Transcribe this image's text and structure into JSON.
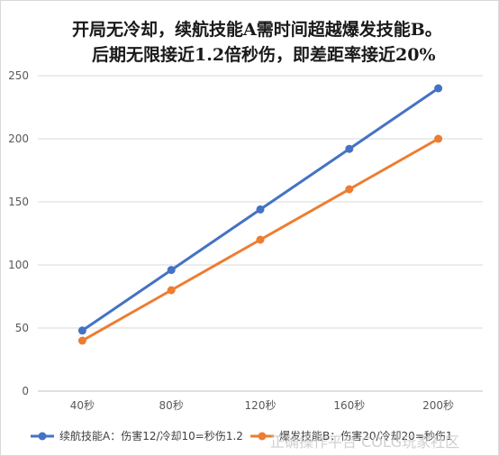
{
  "title_lines": [
    "开局无冷却，续航技能A需时间超越爆发技能B。",
    "后期无限接近1.2倍秒伤，即差距率接近20%"
  ],
  "watermark": "正确操作平台 COLG玩家社区",
  "colors": {
    "series_a": "#4472C4",
    "series_b": "#ED7D31",
    "grid": "#d9d9d9",
    "axis": "#bfbfbf"
  },
  "chart_data": {
    "type": "line",
    "categories": [
      "40秒",
      "80秒",
      "120秒",
      "160秒",
      "200秒"
    ],
    "series": [
      {
        "name": "续航技能A：伤害12/冷却10=秒伤1.2",
        "values": [
          48,
          96,
          144,
          192,
          240
        ]
      },
      {
        "name": "爆发技能B：伤害20/冷却20=秒伤1",
        "values": [
          40,
          80,
          120,
          160,
          200
        ]
      }
    ],
    "ylim": [
      0,
      250
    ],
    "yticks": [
      0,
      50,
      100,
      150,
      200,
      250
    ],
    "grid": true,
    "legend": "bottom"
  }
}
